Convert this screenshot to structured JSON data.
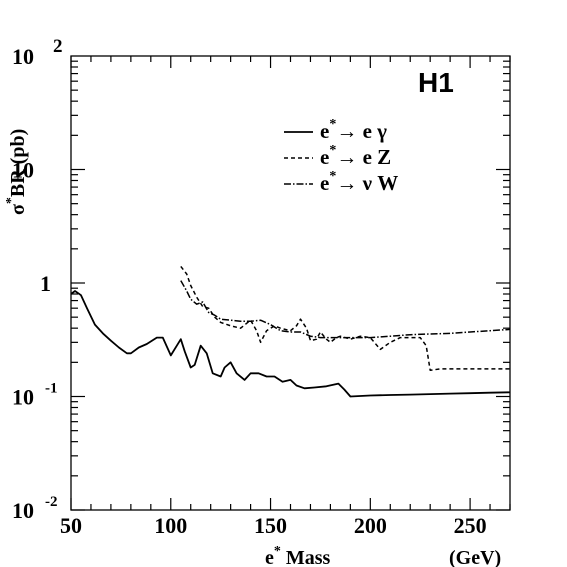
{
  "chart_data": {
    "type": "line",
    "tag": "H1",
    "xlabel": {
      "main": "e",
      "sup": "*",
      "rest": " Mass"
    },
    "xunit": "(GeV)",
    "ylabel": {
      "pre": "σ",
      "sup": "*",
      "rest": "BR  (pb)"
    },
    "xlim": [
      50,
      270
    ],
    "ylim": [
      0.01,
      100
    ],
    "yscale": "log",
    "x_ticks": [
      "50",
      "100",
      "150",
      "200",
      "250"
    ],
    "y_ticks": [
      {
        "value": 100,
        "base": "10",
        "exp": "2"
      },
      {
        "value": 10,
        "base": "10",
        "exp": ""
      },
      {
        "value": 1,
        "base": "1",
        "exp": ""
      },
      {
        "value": 0.1,
        "base": "10",
        "exp": "-1"
      },
      {
        "value": 0.01,
        "base": "10",
        "exp": "-2"
      }
    ],
    "legend_position": "top-right",
    "series": [
      {
        "name": "e* → e γ",
        "legend": {
          "e": "e",
          "sup": "*",
          "arrow": "→",
          "rest": " e γ"
        },
        "style": "solid",
        "x": [
          50,
          52,
          55,
          58,
          62,
          66,
          70,
          74,
          78,
          80,
          84,
          88,
          93,
          96,
          100,
          103,
          105,
          107,
          110,
          112,
          115,
          118,
          121,
          125,
          127,
          130,
          133,
          137,
          140,
          144,
          148,
          152,
          156,
          160,
          163,
          167,
          172,
          178,
          184,
          187,
          190,
          195,
          200,
          210,
          220,
          230,
          240,
          250,
          260,
          270
        ],
        "y": [
          0.8,
          0.85,
          0.78,
          0.6,
          0.43,
          0.36,
          0.31,
          0.27,
          0.24,
          0.24,
          0.27,
          0.29,
          0.33,
          0.33,
          0.23,
          0.28,
          0.32,
          0.25,
          0.18,
          0.19,
          0.28,
          0.24,
          0.16,
          0.15,
          0.18,
          0.2,
          0.16,
          0.14,
          0.16,
          0.16,
          0.15,
          0.15,
          0.135,
          0.14,
          0.125,
          0.118,
          0.12,
          0.123,
          0.13,
          0.115,
          0.1,
          0.101,
          0.102,
          0.103,
          0.104,
          0.105,
          0.106,
          0.107,
          0.108,
          0.109
        ]
      },
      {
        "name": "e* → e Z",
        "legend": {
          "e": "e",
          "sup": "*",
          "arrow": "→",
          "rest": " e Z"
        },
        "style": "dashed",
        "x": [
          105,
          108,
          110,
          113,
          116,
          119,
          122,
          125,
          130,
          135,
          140,
          143,
          145,
          148,
          152,
          155,
          160,
          163,
          165,
          168,
          170,
          173,
          175,
          178,
          180,
          183,
          185,
          190,
          195,
          200,
          205,
          210,
          215,
          220,
          225,
          228,
          230,
          235,
          240,
          250,
          260,
          270
        ],
        "y": [
          1.4,
          1.2,
          0.95,
          0.75,
          0.62,
          0.6,
          0.5,
          0.45,
          0.42,
          0.4,
          0.47,
          0.38,
          0.3,
          0.38,
          0.42,
          0.4,
          0.38,
          0.42,
          0.48,
          0.4,
          0.31,
          0.32,
          0.37,
          0.32,
          0.3,
          0.33,
          0.34,
          0.32,
          0.34,
          0.33,
          0.26,
          0.3,
          0.33,
          0.33,
          0.33,
          0.28,
          0.17,
          0.175,
          0.175,
          0.175,
          0.175,
          0.175
        ]
      },
      {
        "name": "e* → ν W",
        "legend": {
          "e": "e",
          "sup": "*",
          "arrow": "→",
          "rest": " ν W"
        },
        "style": "dashdot",
        "x": [
          105,
          108,
          110,
          113,
          116,
          119,
          122,
          125,
          130,
          135,
          140,
          145,
          150,
          155,
          160,
          165,
          170,
          175,
          180,
          190,
          200,
          210,
          220,
          230,
          240,
          250,
          260,
          270
        ],
        "y": [
          1.05,
          0.85,
          0.72,
          0.65,
          0.68,
          0.55,
          0.52,
          0.48,
          0.47,
          0.46,
          0.46,
          0.47,
          0.43,
          0.38,
          0.37,
          0.37,
          0.34,
          0.33,
          0.33,
          0.33,
          0.33,
          0.34,
          0.35,
          0.355,
          0.36,
          0.37,
          0.38,
          0.39
        ]
      }
    ]
  }
}
